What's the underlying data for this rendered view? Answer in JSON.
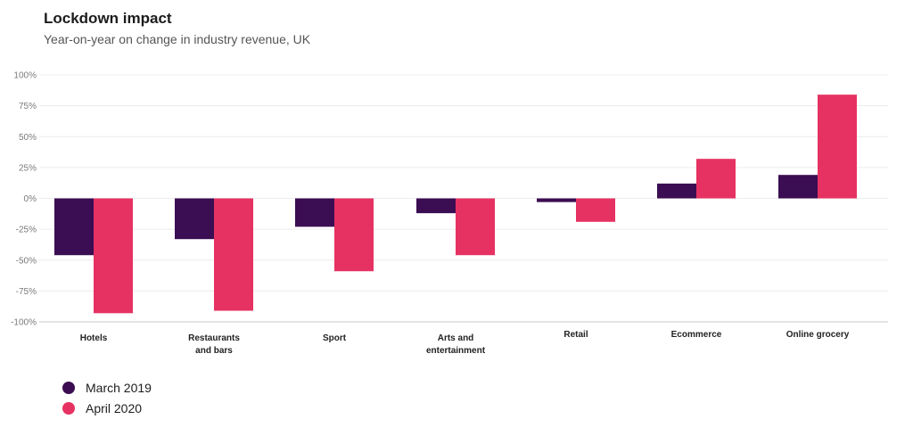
{
  "title": "Lockdown impact",
  "subtitle": "Year-on-year on change  in industry revenue, UK",
  "colors": {
    "march_2019": "#3b0d52",
    "april_2020": "#e63262"
  },
  "chart_data": {
    "type": "bar",
    "title": "Lockdown impact",
    "subtitle": "Year-on-year on change  in industry revenue, UK",
    "categories": [
      [
        "Hotels"
      ],
      [
        "Restaurants",
        "and bars"
      ],
      [
        "Sport"
      ],
      [
        "Arts and",
        "entertainment"
      ],
      [
        "Retail"
      ],
      [
        "Ecommerce"
      ],
      [
        "Online grocery"
      ]
    ],
    "series": [
      {
        "name": "March 2019",
        "values": [
          -46,
          -33,
          -23,
          -12,
          -3,
          12,
          19
        ]
      },
      {
        "name": "April 2020",
        "values": [
          -93,
          -91,
          -59,
          -46,
          -19,
          32,
          84
        ]
      }
    ],
    "ylim": [
      -100,
      100
    ],
    "yticks": [
      100,
      75,
      50,
      25,
      0,
      -25,
      -50,
      -75,
      -100
    ],
    "ytick_labels": [
      "100%",
      "75%",
      "50%",
      "25%",
      "0%",
      "-25%",
      "-50%",
      "-75%",
      "-100%"
    ],
    "xlabel": "",
    "ylabel": "",
    "grid": true,
    "legend_position": "bottom-left"
  }
}
